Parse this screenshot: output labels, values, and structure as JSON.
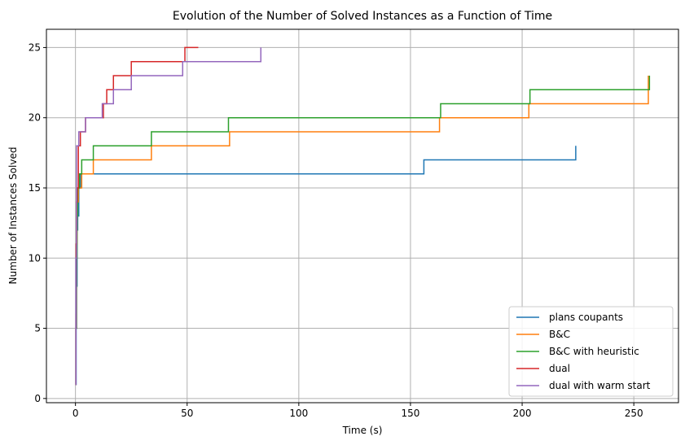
{
  "chart_data": {
    "type": "line",
    "title": "Evolution of the Number of Solved Instances as a Function of Time",
    "xlabel": "Time (s)",
    "ylabel": "Number of Instances Solved",
    "xlim": [
      -13,
      270
    ],
    "ylim": [
      -0.3,
      26.3
    ],
    "xticks": [
      0,
      50,
      100,
      150,
      200,
      250
    ],
    "yticks": [
      0,
      5,
      10,
      15,
      20,
      25
    ],
    "grid": true,
    "legend_position": "lower right",
    "step": "post",
    "series": [
      {
        "name": "plans coupants",
        "color": "#1f77b4",
        "x": [
          0,
          0.3,
          0.5,
          0.7,
          1.0,
          1.5,
          2.3,
          156,
          224
        ],
        "y": [
          1,
          5,
          8,
          12,
          13,
          15,
          16,
          17,
          18
        ]
      },
      {
        "name": "B&C",
        "color": "#ff7f0e",
        "x": [
          0,
          0.2,
          0.4,
          0.7,
          1.3,
          2.8,
          8,
          34,
          69,
          163,
          203,
          256.5
        ],
        "y": [
          1,
          6,
          11,
          14,
          15,
          16,
          17,
          18,
          19,
          20,
          21,
          23
        ]
      },
      {
        "name": "B&C with heuristic",
        "color": "#2ca02c",
        "x": [
          0,
          0.2,
          0.4,
          0.7,
          1.0,
          1.8,
          2.8,
          8,
          34,
          68.5,
          163.5,
          203.5,
          257
        ],
        "y": [
          1,
          5,
          10,
          13,
          15,
          16,
          17,
          18,
          19,
          20,
          21,
          22,
          23
        ]
      },
      {
        "name": "dual",
        "color": "#d62728",
        "x": [
          0,
          0.2,
          0.3,
          0.5,
          0.8,
          1.3,
          2.2,
          4.5,
          12.5,
          14,
          17,
          25,
          42,
          49,
          55
        ],
        "y": [
          1,
          5,
          11,
          14,
          15,
          18,
          19,
          20,
          21,
          22,
          23,
          24,
          24,
          25,
          25
        ]
      },
      {
        "name": "dual with warm start",
        "color": "#9467bd",
        "x": [
          0,
          0.2,
          0.5,
          1.5,
          4.5,
          12,
          17,
          25,
          48,
          83
        ],
        "y": [
          1,
          10,
          18,
          19,
          20,
          21,
          22,
          23,
          24,
          25
        ]
      }
    ]
  }
}
